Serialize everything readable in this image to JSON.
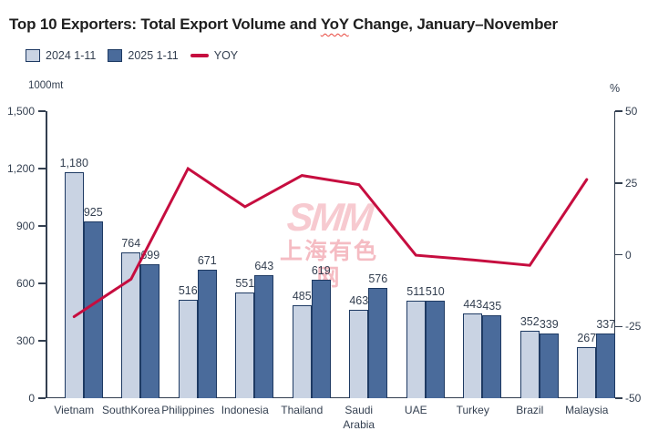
{
  "title": {
    "prefix": "Top 10 Exporters: Total Export Volume and ",
    "squiggle_word": "YoY",
    "suffix": " Change, January–November",
    "full": "Top 10 Exporters: Total Export Volume and YoY Change, January–November"
  },
  "legend": {
    "series_2024": "2024 1-11",
    "series_2025": "2025 1-11",
    "yoy": "YOY"
  },
  "axes": {
    "left_unit": "1000mt",
    "right_unit": "%",
    "left_ticks": [
      "1,500",
      "1,200",
      "900",
      "600",
      "300",
      "0"
    ],
    "right_ticks": [
      "50",
      "25",
      "0",
      "-25",
      "-50"
    ]
  },
  "watermark": {
    "logo": "SMM",
    "chinese": "上海有色网"
  },
  "colors": {
    "bar_2024": "#c9d3e3",
    "bar_2025": "#4a6b9b",
    "bar_border": "#1e3a63",
    "yoy_line": "#c60d3f",
    "axis_text": "#333f50",
    "title_text": "#1f1f1f",
    "squiggle_red": "#e8453c",
    "watermark_logo": "#f7cad0",
    "watermark_text": "#f5bcc3"
  },
  "chart_data": {
    "type": "bar",
    "combo": "grouped bars + line (secondary axis)",
    "title": "Top 10 Exporters: Total Export Volume and YoY Change, January–November",
    "categories": [
      "Vietnam",
      "SouthKorea",
      "Philippines",
      "Indonesia",
      "Thailand",
      "Saudi Arabia",
      "UAE",
      "Turkey",
      "Brazil",
      "Malaysia"
    ],
    "series": [
      {
        "name": "2024 1-11",
        "values": [
          1180,
          764,
          516,
          551,
          485,
          463,
          511,
          443,
          352,
          267
        ]
      },
      {
        "name": "2025 1-11",
        "values": [
          925,
          699,
          671,
          643,
          619,
          576,
          510,
          435,
          339,
          337
        ]
      }
    ],
    "line_series": {
      "name": "YOY",
      "axis": "right",
      "unit": "%",
      "values": [
        -21.6,
        -8.5,
        30.0,
        16.7,
        27.6,
        24.4,
        -0.2,
        -1.8,
        -3.7,
        26.2
      ]
    },
    "left_axis": {
      "label": "1000mt",
      "min": 0,
      "max": 1500,
      "tick_step": 300
    },
    "right_axis": {
      "label": "%",
      "min": -50,
      "max": 50,
      "tick_step": 25
    },
    "grid": false,
    "data_labels": true,
    "legend_position": "top-left"
  }
}
